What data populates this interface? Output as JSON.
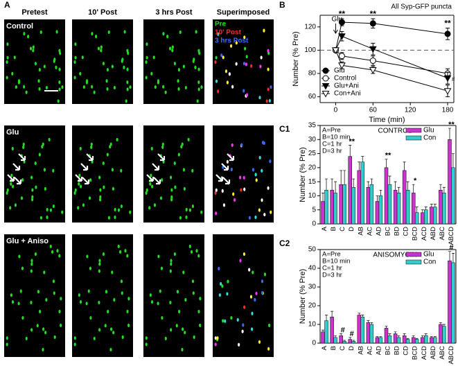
{
  "panel_a": {
    "label": "A",
    "columns": [
      "Pretest",
      "10' Post",
      "3 hrs Post",
      "Superimposed"
    ],
    "rows": [
      "Control",
      "Glu",
      "Glu + Aniso"
    ],
    "overlay_legend": [
      {
        "name": "Pre",
        "color": "#22dd22"
      },
      {
        "name": "10' Post",
        "color": "#ff2a2a"
      },
      {
        "name": "3 hrs Post",
        "color": "#3a6bff"
      }
    ]
  },
  "chart_data": [
    {
      "type": "line",
      "panel_label": "B",
      "title": "All Syp-GFP puncta",
      "xlabel": "Time (min)",
      "ylabel": "Number (% Pre)",
      "x": [
        0,
        10,
        60,
        180
      ],
      "xlim": [
        -25,
        190
      ],
      "xticks": [
        0,
        60,
        120,
        180
      ],
      "ylim": [
        55,
        130
      ],
      "yticks": [
        60,
        80,
        100,
        120
      ],
      "reference_line": 100,
      "event_marker": {
        "text": "Glu",
        "x": 0
      },
      "legend": "lower left",
      "series": [
        {
          "name": "Glu",
          "color": "#000000",
          "marker": "circle",
          "filled": true,
          "values": [
            100,
            124,
            123,
            114
          ],
          "errors": [
            0,
            3,
            4,
            5
          ]
        },
        {
          "name": "Control",
          "color": "#000000",
          "marker": "circle",
          "filled": false,
          "values": [
            100,
            95,
            91,
            80
          ],
          "errors": [
            0,
            3,
            4,
            4
          ]
        },
        {
          "name": "Glu+Ani",
          "color": "#000000",
          "marker": "triangle",
          "filled": true,
          "values": [
            100,
            112,
            101,
            76
          ],
          "errors": [
            0,
            4,
            5,
            5
          ]
        },
        {
          "name": "Con+Ani",
          "color": "#000000",
          "marker": "triangle",
          "filled": false,
          "values": [
            100,
            87,
            83,
            65
          ],
          "errors": [
            0,
            3,
            3,
            5
          ]
        }
      ],
      "annotations": [
        {
          "text": "**",
          "x": 10
        },
        {
          "text": "**",
          "x": 60
        },
        {
          "text": "**",
          "x": 180
        },
        {
          "text": "#",
          "x": 180,
          "series": 2
        }
      ]
    },
    {
      "type": "bar",
      "panel_label": "C1",
      "title": "CONTROL",
      "ylabel": "Number (% Pre)",
      "key": [
        "A=Pre",
        "B=10 min",
        "C=1 hr",
        "D=3 hr"
      ],
      "categories": [
        "A",
        "B",
        "C",
        "D",
        "AB",
        "AC",
        "AD",
        "BC",
        "BD",
        "CD",
        "BCD",
        "ACD",
        "ABD",
        "ABC",
        "ABCD"
      ],
      "ylim": [
        0,
        35
      ],
      "yticks": [
        0,
        5,
        10,
        15,
        20,
        25,
        30,
        35
      ],
      "legend": "upper right",
      "series": [
        {
          "name": "Glu",
          "color": "#cc33cc",
          "values": [
            8,
            12,
            14,
            24,
            19,
            13,
            8,
            20,
            12,
            19,
            11,
            4,
            6,
            12,
            30
          ],
          "errors": [
            3,
            4,
            5,
            4,
            3,
            2,
            2,
            3,
            3,
            3,
            3,
            1,
            1,
            2,
            4
          ]
        },
        {
          "name": "Con",
          "color": "#33cccc",
          "values": [
            12,
            11,
            14,
            13,
            22,
            14,
            10,
            14,
            11,
            12,
            4,
            5,
            6,
            11,
            20
          ],
          "errors": [
            4,
            4,
            5,
            3,
            2,
            2,
            2,
            3,
            2,
            3,
            2,
            1,
            1,
            2,
            5
          ]
        }
      ],
      "annotations": [
        {
          "text": "**",
          "category": 3
        },
        {
          "text": "**",
          "category": 7
        },
        {
          "text": "*",
          "category": 10
        },
        {
          "text": "**",
          "category": 14
        }
      ]
    },
    {
      "type": "bar",
      "panel_label": "C2",
      "title": "ANISOMYCIN",
      "ylabel": "Number (% Pre)",
      "key": [
        "A=Pre",
        "B=10 min",
        "C=1 hr",
        "D=3 hr"
      ],
      "categories": [
        "A",
        "B",
        "C",
        "D",
        "AB",
        "AC",
        "AD",
        "BC",
        "BD",
        "CD",
        "BCD",
        "ACD",
        "ABD",
        "ABC",
        "ABCD"
      ],
      "ylim": [
        0,
        50
      ],
      "yticks": [
        0,
        10,
        20,
        30,
        40,
        50
      ],
      "legend": "upper right",
      "series": [
        {
          "name": "Glu",
          "color": "#cc33cc",
          "values": [
            6,
            14,
            4,
            2,
            15,
            11,
            3,
            8,
            5,
            4,
            3,
            3,
            3,
            10,
            44
          ],
          "errors": [
            1,
            3,
            1,
            1,
            1,
            1,
            0.5,
            1,
            1,
            1,
            1,
            1,
            0.5,
            1,
            5
          ]
        },
        {
          "name": "Con",
          "color": "#33cccc",
          "values": [
            12,
            3,
            1,
            1,
            14,
            10,
            3,
            4,
            3,
            2,
            2,
            4,
            3,
            9,
            43
          ],
          "errors": [
            3,
            1,
            0.5,
            0.5,
            1,
            1,
            0.5,
            1,
            1,
            0.5,
            0.5,
            1,
            0.5,
            1,
            5
          ]
        }
      ],
      "annotations": [
        {
          "text": "#",
          "category": 2
        },
        {
          "text": "#",
          "category": 3
        },
        {
          "text": "#",
          "category": 14
        }
      ]
    }
  ]
}
